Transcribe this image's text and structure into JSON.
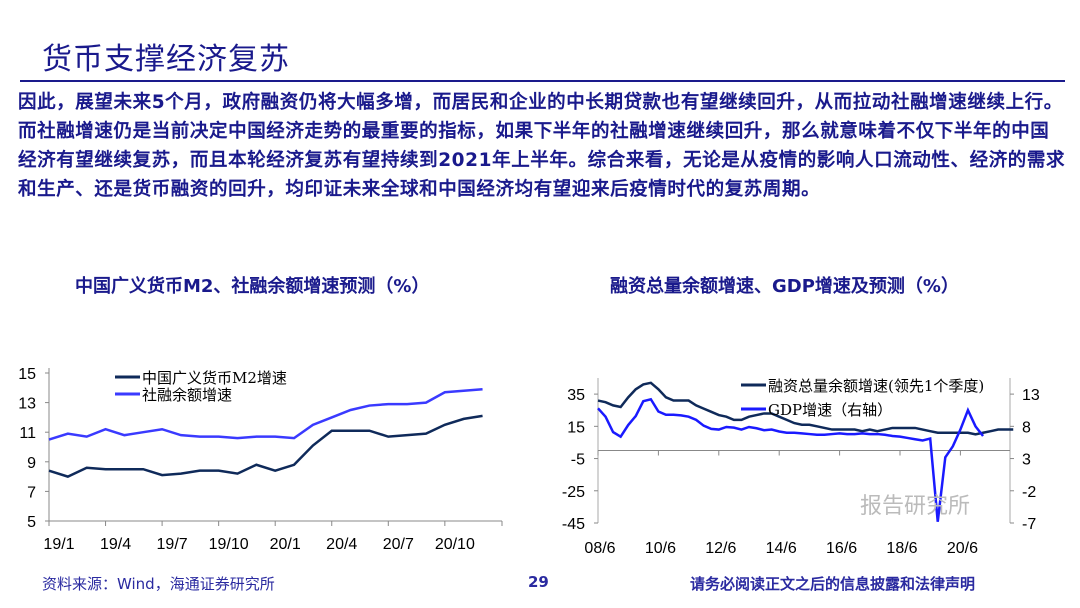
{
  "title": "货币支撑经济复苏",
  "paragraph": "因此，展望未来5个月，政府融资仍将大幅多增，而居民和企业的中长期贷款也有望继续回升，从而拉动社融增速继续上行。而社融增速仍是当前决定中国经济走势的最重要的指标，如果下半年的社融增速继续回升，那么就意味着不仅下半年的中国经济有望继续复苏，而且本轮经济复苏有望持续到2021年上半年。综合来看，无论是从疫情的影响人口流动性、经济的需求和生产、还是货币融资的回升，均印证未来全球和中国经济均有望迎来后疫情时代的复苏周期。",
  "footer": {
    "source": "资料来源：Wind，海通证券研究所",
    "page": "29",
    "disclaimer": "请务必阅读正文之后的信息披露和法律声明",
    "watermark": "报告研究所"
  },
  "colors": {
    "dark": "#0f2a5a",
    "bright": "#3a3aff",
    "text": "#1a1a8c"
  },
  "chart_data": [
    {
      "type": "line",
      "title": "中国广义货币M2、社融余额增速预测（%）",
      "ylim": [
        5,
        15
      ],
      "yticks": [
        "5",
        "7",
        "9",
        "11",
        "13",
        "15"
      ],
      "xticks": [
        "19/1",
        "19/4",
        "19/7",
        "19/10",
        "20/1",
        "20/4",
        "20/7",
        "20/10"
      ],
      "legend": "top-center",
      "series": [
        {
          "name": "中国广义货币M2增速",
          "color": "#0f2a5a",
          "values": [
            8.4,
            8.0,
            8.6,
            8.5,
            8.5,
            8.5,
            8.1,
            8.2,
            8.4,
            8.4,
            8.2,
            8.8,
            8.4,
            8.8,
            10.1,
            11.1,
            11.1,
            11.1,
            10.7,
            10.8,
            10.9,
            11.5,
            11.9,
            12.1
          ]
        },
        {
          "name": "社融余额增速",
          "color": "#3a3aff",
          "values": [
            10.5,
            10.9,
            10.7,
            11.2,
            10.8,
            11.0,
            11.2,
            10.8,
            10.7,
            10.7,
            10.6,
            10.7,
            10.7,
            10.6,
            11.5,
            12.0,
            12.5,
            12.8,
            12.9,
            12.9,
            13.0,
            13.7,
            13.8,
            13.9
          ]
        }
      ]
    },
    {
      "type": "line",
      "title": "融资总量余额增速、GDP增速及预测（%）",
      "ylim": [
        -45,
        45
      ],
      "yticks": [
        "35",
        "15",
        "-5",
        "-25",
        "-45"
      ],
      "y2lim": [
        -7,
        13
      ],
      "y2ticks": [
        "13",
        "8",
        "3",
        "-2",
        "-7"
      ],
      "xticks": [
        "08/6",
        "10/6",
        "12/6",
        "14/6",
        "16/6",
        "18/6",
        "20/6"
      ],
      "legend": "top-right",
      "series": [
        {
          "name": "融资总量余额增速(领先1个季度)",
          "axis": "left",
          "color": "#0f2a5a",
          "values": [
            31,
            30,
            28,
            27,
            33,
            38,
            41,
            42,
            38,
            33,
            31,
            31,
            31,
            28,
            26,
            24,
            22,
            21,
            19,
            19,
            21,
            22,
            23,
            23,
            21,
            19,
            17,
            16,
            16,
            15,
            14,
            13,
            13,
            13,
            13,
            12,
            13,
            12,
            13,
            14,
            14,
            14,
            14,
            13,
            12,
            11,
            11,
            11,
            11,
            11,
            10,
            11,
            12,
            13,
            13,
            13
          ]
        },
        {
          "name": "GDP增速（右轴）",
          "axis": "right",
          "color": "#1a1aff",
          "values": [
            10.8,
            9.5,
            7.1,
            6.4,
            8.2,
            9.6,
            11.9,
            12.2,
            10.3,
            9.8,
            9.8,
            9.7,
            9.5,
            9.0,
            8.1,
            7.6,
            7.5,
            7.9,
            7.8,
            7.5,
            7.9,
            7.7,
            7.4,
            7.5,
            7.2,
            7.0,
            7.0,
            6.9,
            6.8,
            6.7,
            6.7,
            6.8,
            6.9,
            6.8,
            6.8,
            6.9,
            6.8,
            6.8,
            6.7,
            6.5,
            6.4,
            6.2,
            6.0,
            5.8,
            6.1,
            -6.8,
            3.2,
            4.9,
            7.5,
            10.5,
            8.0,
            6.5
          ]
        }
      ]
    }
  ]
}
